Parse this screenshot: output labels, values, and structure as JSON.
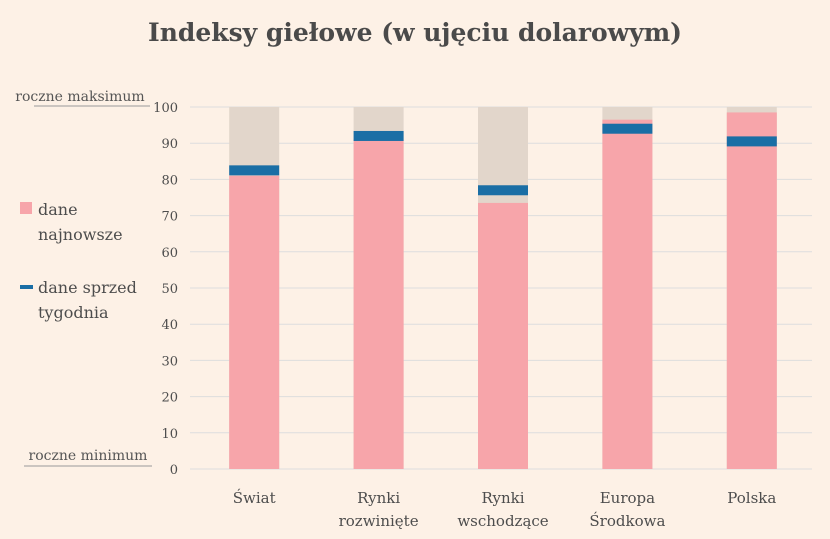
{
  "chart_data": {
    "type": "bar",
    "title": "Indeksy giełowe (w ujęciu dolarowym)",
    "ylim": [
      0,
      100
    ],
    "yticks": [
      0,
      10,
      20,
      30,
      40,
      50,
      60,
      70,
      80,
      90,
      100
    ],
    "max_label": "roczne maksimum",
    "min_label": "roczne minimum",
    "categories": [
      [
        "Świat"
      ],
      [
        "Rynki",
        "rozwinięte"
      ],
      [
        "Rynki",
        "wschodzące"
      ],
      [
        "Europa",
        "Środkowa"
      ],
      [
        "Polska"
      ]
    ],
    "range_max": [
      100,
      100,
      100,
      100,
      100
    ],
    "series": [
      {
        "name": "dane najnowsze",
        "values": [
          81,
          91,
          73.5,
          96.5,
          98.5
        ]
      },
      {
        "name": "dane sprzed tygodnia",
        "values": [
          82.5,
          92,
          77,
          94,
          90.5
        ]
      }
    ],
    "legend": {
      "placement": "left",
      "items": [
        {
          "lines": [
            "dane",
            "najnowsze"
          ],
          "marker": "square"
        },
        {
          "lines": [
            "dane sprzed",
            "tygodnia"
          ],
          "marker": "dash"
        }
      ]
    },
    "colors": {
      "background": "#fdf1e6",
      "range": "#e2d6cb",
      "latest": "#f7a5aa",
      "previous": "#1a6ea5",
      "grid": "#dddddd"
    },
    "grid": true
  }
}
